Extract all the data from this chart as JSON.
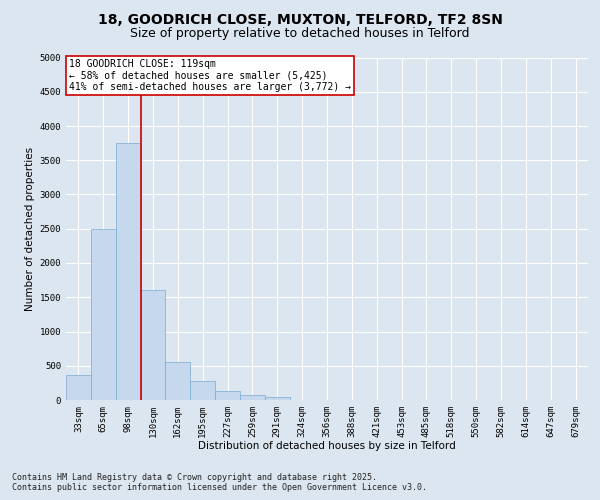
{
  "title_line1": "18, GOODRICH CLOSE, MUXTON, TELFORD, TF2 8SN",
  "title_line2": "Size of property relative to detached houses in Telford",
  "xlabel": "Distribution of detached houses by size in Telford",
  "ylabel": "Number of detached properties",
  "categories": [
    "33sqm",
    "65sqm",
    "98sqm",
    "130sqm",
    "162sqm",
    "195sqm",
    "227sqm",
    "259sqm",
    "291sqm",
    "324sqm",
    "356sqm",
    "388sqm",
    "421sqm",
    "453sqm",
    "485sqm",
    "518sqm",
    "550sqm",
    "582sqm",
    "614sqm",
    "647sqm",
    "679sqm"
  ],
  "values": [
    370,
    2500,
    3750,
    1600,
    550,
    280,
    130,
    80,
    50,
    0,
    0,
    0,
    0,
    0,
    0,
    0,
    0,
    0,
    0,
    0,
    0
  ],
  "bar_color": "#c5d8ee",
  "bar_edge_color": "#7aaad0",
  "vline_color": "#cc0000",
  "vline_pos": 2.5,
  "annotation_title": "18 GOODRICH CLOSE: 119sqm",
  "annotation_line2": "← 58% of detached houses are smaller (5,425)",
  "annotation_line3": "41% of semi-detached houses are larger (3,772) →",
  "ylim": [
    0,
    5000
  ],
  "yticks": [
    0,
    500,
    1000,
    1500,
    2000,
    2500,
    3000,
    3500,
    4000,
    4500,
    5000
  ],
  "background_color": "#dce6f0",
  "plot_bg_color": "#dce6f0",
  "footer_line1": "Contains HM Land Registry data © Crown copyright and database right 2025.",
  "footer_line2": "Contains public sector information licensed under the Open Government Licence v3.0.",
  "title_fontsize": 10,
  "subtitle_fontsize": 9,
  "axis_label_fontsize": 7.5,
  "tick_fontsize": 6.5,
  "annotation_fontsize": 7,
  "footer_fontsize": 6
}
